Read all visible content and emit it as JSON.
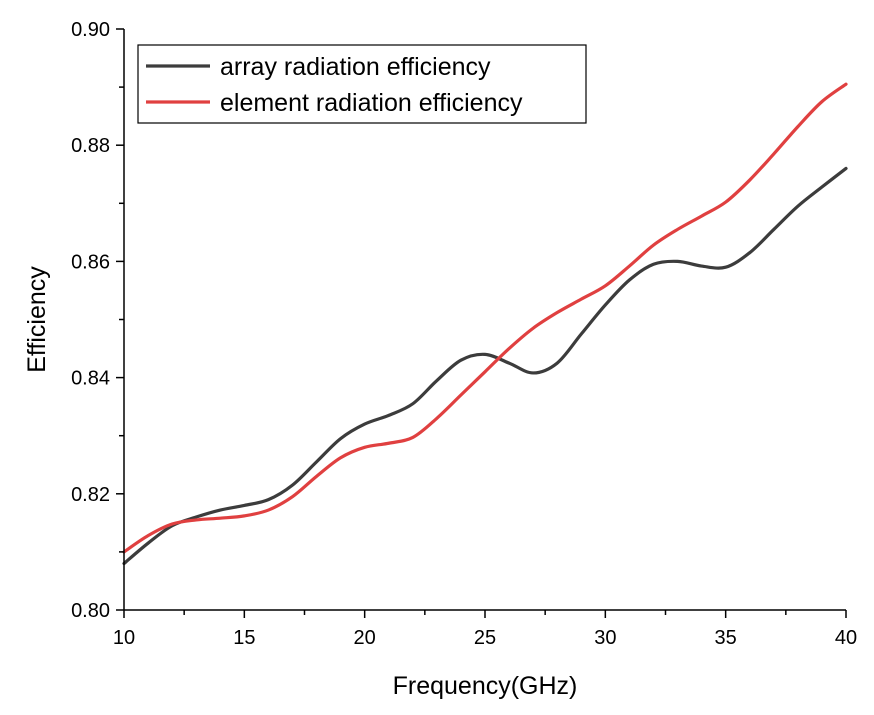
{
  "chart_data": {
    "type": "line",
    "title": "",
    "xlabel": "Frequency(GHz)",
    "ylabel": "Efficiency",
    "xlim": [
      10,
      40
    ],
    "ylim": [
      0.8,
      0.9
    ],
    "xticks": [
      10,
      15,
      20,
      25,
      30,
      35,
      40
    ],
    "xtick_labels": [
      "10",
      "15",
      "20",
      "25",
      "30",
      "35",
      "40"
    ],
    "yticks": [
      0.8,
      0.82,
      0.84,
      0.86,
      0.88,
      0.9
    ],
    "ytick_labels": [
      "0.80",
      "0.82",
      "0.84",
      "0.86",
      "0.88",
      "0.90"
    ],
    "grid": false,
    "legend_position": "top-left",
    "series": [
      {
        "name": "array radiation efficiency",
        "color": "#3c3c3c",
        "x": [
          10,
          11,
          12,
          13,
          14,
          15,
          16,
          17,
          18,
          19,
          20,
          21,
          22,
          23,
          24,
          25,
          26,
          27,
          28,
          29,
          30,
          31,
          32,
          33,
          34,
          35,
          36,
          37,
          38,
          39,
          40
        ],
        "y": [
          0.808,
          0.8115,
          0.8145,
          0.816,
          0.8172,
          0.818,
          0.819,
          0.8215,
          0.8255,
          0.8295,
          0.832,
          0.8335,
          0.8355,
          0.8395,
          0.843,
          0.844,
          0.8425,
          0.8408,
          0.8425,
          0.8475,
          0.8525,
          0.8568,
          0.8595,
          0.86,
          0.8592,
          0.859,
          0.8615,
          0.8655,
          0.8695,
          0.8728,
          0.876
        ]
      },
      {
        "name": "element radiation efficiency",
        "color": "#e04040",
        "x": [
          10,
          11,
          12,
          13,
          14,
          15,
          16,
          17,
          18,
          19,
          20,
          21,
          22,
          23,
          24,
          25,
          26,
          27,
          28,
          29,
          30,
          31,
          32,
          33,
          34,
          35,
          36,
          37,
          38,
          39,
          40
        ],
        "y": [
          0.81,
          0.8128,
          0.8148,
          0.8155,
          0.8158,
          0.8162,
          0.8172,
          0.8195,
          0.823,
          0.8262,
          0.828,
          0.8287,
          0.8297,
          0.833,
          0.837,
          0.841,
          0.845,
          0.8485,
          0.8512,
          0.8535,
          0.8558,
          0.8592,
          0.8628,
          0.8655,
          0.8678,
          0.8702,
          0.874,
          0.8785,
          0.8832,
          0.8875,
          0.8905
        ]
      }
    ]
  }
}
